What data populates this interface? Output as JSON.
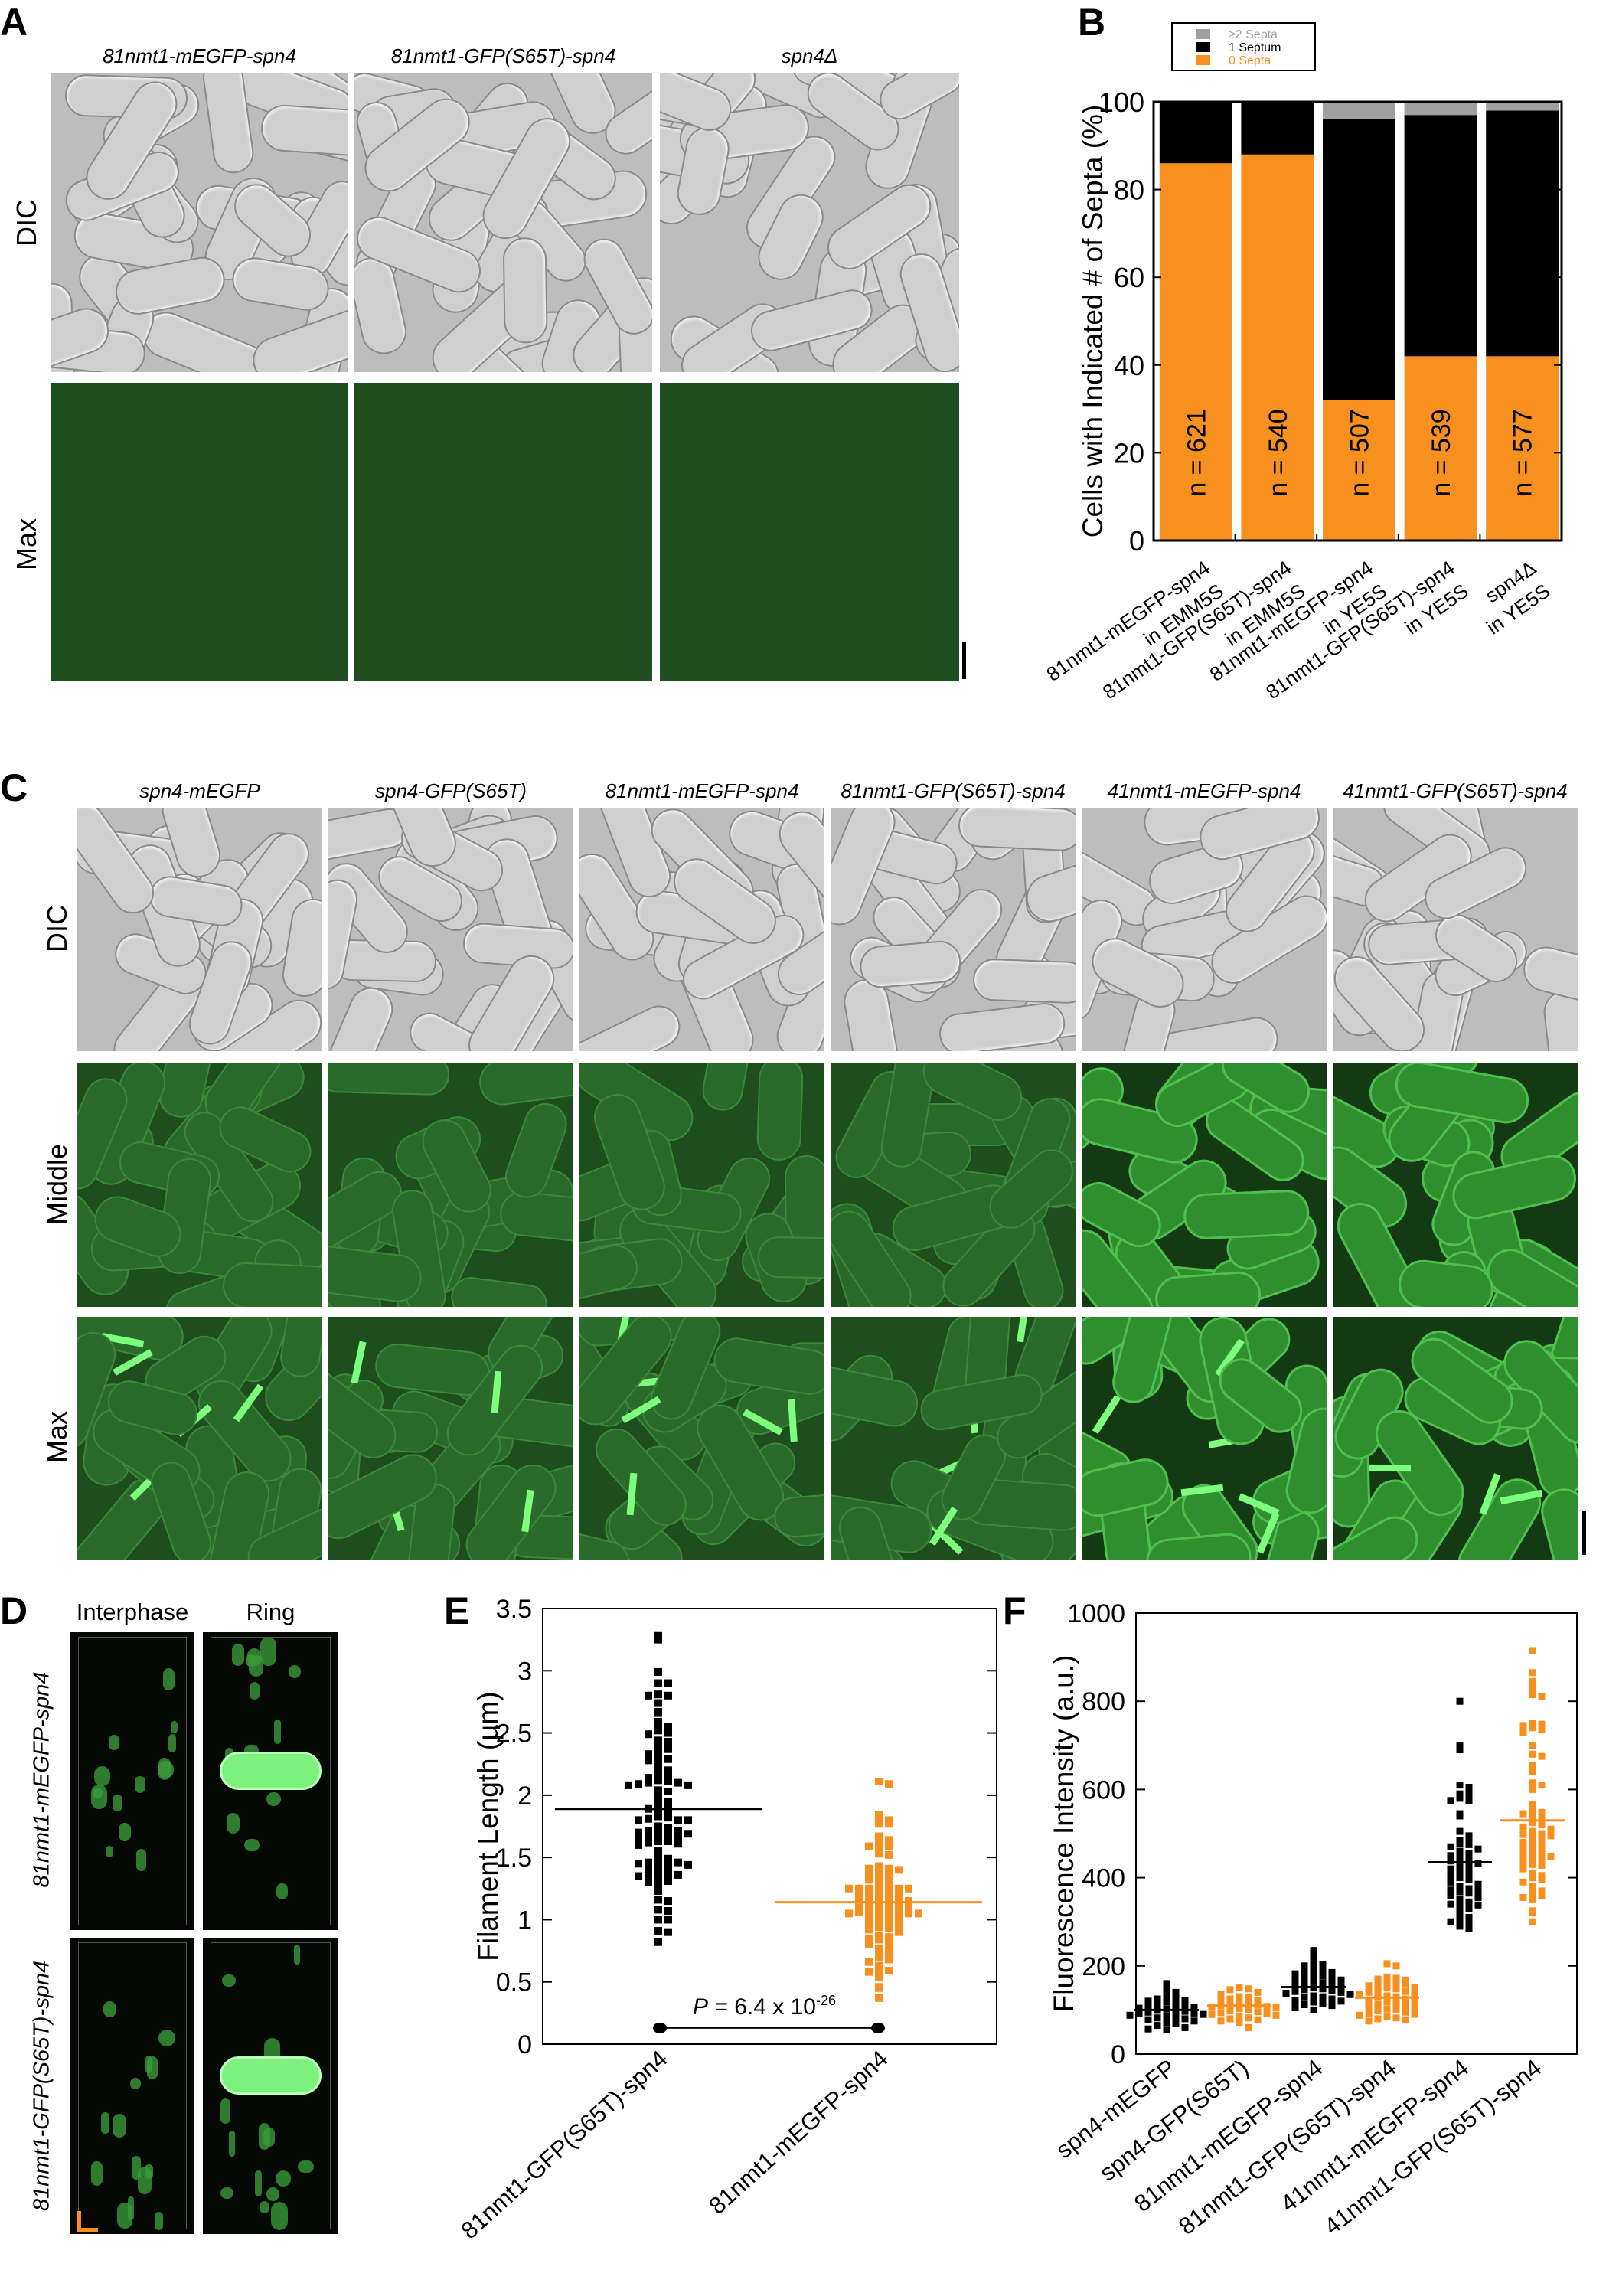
{
  "panel_a": {
    "label": "A",
    "columns": [
      "81nmt1-mEGFP-spn4",
      "81nmt1-GFP(S65T)-spn4",
      "spn4Δ"
    ],
    "rows": [
      "DIC",
      "Max"
    ]
  },
  "panel_c": {
    "label": "C",
    "columns": [
      "spn4-mEGFP",
      "spn4-GFP(S65T)",
      "81nmt1-mEGFP-spn4",
      "81nmt1-GFP(S65T)-spn4",
      "41nmt1-mEGFP-spn4",
      "41nmt1-GFP(S65T)-spn4"
    ],
    "rows": [
      "DIC",
      "Middle",
      "Max"
    ]
  },
  "panel_d": {
    "label": "D",
    "columns": [
      "Interphase",
      "Ring"
    ],
    "rows": [
      "81nmt1-mEGFP-spn4",
      "81nmt1-GFP(S65T)-spn4"
    ]
  },
  "colors": {
    "orange": "#f7901e",
    "black": "#000000",
    "gray": "#a0a0a0",
    "green": "#3ccc3c"
  },
  "chart_data": [
    {
      "panel": "B",
      "type": "bar",
      "stacked": true,
      "ylabel": "Cells with Indicated # of Septa (%)",
      "ylim": [
        0,
        100
      ],
      "yticks": [
        0,
        20,
        40,
        60,
        80,
        100
      ],
      "categories": [
        "81nmt1-mEGFP-spn4\nin EMM5S",
        "81nmt1-GFP(S65T)-spn4\nin EMM5S",
        "81nmt1-mEGFP-spn4\nin YE5S",
        "81nmt1-GFP(S65T)-spn4\nin YE5S",
        "spn4Δ\nin YE5S"
      ],
      "series": [
        {
          "name": "0 Septa",
          "color": "#f7901e",
          "values": [
            86,
            88,
            32,
            42,
            42
          ]
        },
        {
          "name": "1 Septum",
          "color": "#000000",
          "values": [
            14,
            12,
            64,
            55,
            56
          ]
        },
        {
          "name": "≥2 Septa",
          "color": "#a0a0a0",
          "values": [
            0,
            0,
            4,
            3,
            2
          ]
        }
      ],
      "legend_order": [
        "≥2 Septa",
        "1 Septum",
        "0 Septa"
      ],
      "legend": "top",
      "bar_labels": [
        "n = 621",
        "n = 540",
        "n = 507",
        "n = 539",
        "n = 577"
      ]
    },
    {
      "panel": "E",
      "type": "scatter",
      "ylabel": "Filament Length (µm)",
      "ylim": [
        0,
        3.5
      ],
      "yticks": [
        "0",
        "0.5",
        "1",
        "1.5",
        "2",
        "2.5",
        "3",
        "3.5"
      ],
      "categories": [
        "81nmt1-GFP(S65T)-spn4",
        "81nmt1-mEGFP-spn4"
      ],
      "series": [
        {
          "color": "#000000",
          "mean": 1.89,
          "values": [
            3.28,
            3.25,
            2.99,
            2.9,
            2.9,
            2.81,
            2.8,
            2.8,
            2.74,
            2.67,
            2.66,
            2.59,
            2.56,
            2.55,
            2.52,
            2.5,
            2.49,
            2.44,
            2.43,
            2.4,
            2.4,
            2.37,
            2.37,
            2.33,
            2.31,
            2.29,
            2.28,
            2.26,
            2.22,
            2.2,
            2.16,
            2.15,
            2.14,
            2.12,
            2.11,
            2.1,
            2.1,
            2.09,
            2.08,
            2.08,
            2.04,
            2.03,
            1.99,
            1.97,
            1.95,
            1.93,
            1.9,
            1.89,
            1.88,
            1.85,
            1.83,
            1.82,
            1.81,
            1.8,
            1.8,
            1.8,
            1.75,
            1.74,
            1.73,
            1.72,
            1.71,
            1.71,
            1.7,
            1.69,
            1.68,
            1.66,
            1.65,
            1.65,
            1.64,
            1.63,
            1.63,
            1.62,
            1.61,
            1.6,
            1.55,
            1.53,
            1.49,
            1.48,
            1.47,
            1.46,
            1.46,
            1.45,
            1.44,
            1.43,
            1.42,
            1.4,
            1.38,
            1.37,
            1.36,
            1.36,
            1.35,
            1.33,
            1.31,
            1.3,
            1.27,
            1.23,
            1.16,
            1.15,
            1.08,
            1.07,
            1.0,
            1.0,
            0.91,
            0.9,
            0.82
          ]
        },
        {
          "color": "#f7901e",
          "mean": 1.14,
          "values": [
            2.11,
            2.09,
            1.84,
            1.82,
            1.8,
            1.77,
            1.77,
            1.67,
            1.64,
            1.62,
            1.59,
            1.59,
            1.57,
            1.53,
            1.52,
            1.43,
            1.41,
            1.41,
            1.4,
            1.38,
            1.37,
            1.37,
            1.34,
            1.33,
            1.32,
            1.28,
            1.27,
            1.25,
            1.25,
            1.25,
            1.25,
            1.25,
            1.24,
            1.22,
            1.22,
            1.21,
            1.2,
            1.19,
            1.18,
            1.18,
            1.17,
            1.17,
            1.15,
            1.14,
            1.13,
            1.12,
            1.12,
            1.1,
            1.1,
            1.08,
            1.08,
            1.07,
            1.06,
            1.06,
            1.05,
            1.05,
            1.05,
            1.04,
            1.04,
            1.02,
            1.01,
            0.99,
            0.98,
            0.97,
            0.95,
            0.94,
            0.93,
            0.92,
            0.9,
            0.87,
            0.86,
            0.85,
            0.84,
            0.82,
            0.8,
            0.77,
            0.76,
            0.75,
            0.72,
            0.7,
            0.68,
            0.66,
            0.63,
            0.6,
            0.59,
            0.58,
            0.54,
            0.46,
            0.45,
            0.37
          ]
        }
      ],
      "annotation": {
        "p_prefix": "P",
        "p_text": " = 6.4 x 10",
        "p_exponent": "-26"
      }
    },
    {
      "panel": "F",
      "type": "scatter",
      "ylabel": "Fluorescence Intensity (a.u.)",
      "ylim": [
        0,
        1000
      ],
      "yticks": [
        "0",
        "200",
        "400",
        "600",
        "800",
        "1000"
      ],
      "categories": [
        "spn4-mEGFP",
        "spn4-GFP(S65T)",
        "81nmt1-mEGFP-spn4",
        "81nmt1-GFP(S65T)-spn4",
        "41nmt1-mEGFP-spn4",
        "41nmt1-GFP(S65T)-spn4"
      ],
      "series": [
        {
          "color": "#000000",
          "mean": 100,
          "values": [
            160,
            145,
            140,
            130,
            125,
            125,
            122,
            120,
            118,
            115,
            112,
            110,
            108,
            105,
            104,
            102,
            100,
            99,
            97,
            95,
            93,
            92,
            90,
            88,
            86,
            85,
            82,
            80,
            78,
            75,
            72,
            70,
            65,
            60,
            57,
            56
          ]
        },
        {
          "color": "#f7901e",
          "mean": 110,
          "values": [
            150,
            148,
            146,
            140,
            135,
            130,
            128,
            125,
            122,
            120,
            118,
            115,
            113,
            112,
            110,
            108,
            106,
            105,
            103,
            100,
            98,
            96,
            94,
            92,
            90,
            88,
            85,
            82,
            80,
            78,
            75,
            72,
            60
          ]
        },
        {
          "color": "#000000",
          "mean": 152,
          "values": [
            235,
            220,
            205,
            203,
            200,
            195,
            190,
            188,
            185,
            182,
            180,
            178,
            175,
            172,
            170,
            168,
            165,
            162,
            160,
            158,
            155,
            153,
            150,
            148,
            146,
            144,
            142,
            140,
            138,
            135,
            132,
            130,
            128,
            125,
            122,
            120,
            118,
            115,
            112,
            110,
            105,
            100
          ]
        },
        {
          "color": "#f7901e",
          "mean": 128,
          "values": [
            205,
            200,
            175,
            172,
            170,
            168,
            165,
            162,
            160,
            158,
            155,
            152,
            150,
            148,
            145,
            142,
            140,
            138,
            135,
            132,
            130,
            128,
            125,
            122,
            120,
            118,
            115,
            112,
            110,
            108,
            105,
            102,
            100,
            98,
            95,
            92,
            90,
            88,
            85,
            82,
            80,
            78,
            75
          ]
        },
        {
          "color": "#000000",
          "mean": 435,
          "values": [
            800,
            700,
            690,
            610,
            605,
            590,
            590,
            580,
            575,
            575,
            545,
            540,
            505,
            495,
            485,
            480,
            478,
            475,
            470,
            465,
            460,
            455,
            450,
            445,
            440,
            438,
            432,
            430,
            425,
            420,
            415,
            410,
            405,
            400,
            395,
            390,
            385,
            380,
            375,
            372,
            370,
            368,
            365,
            360,
            355,
            350,
            345,
            340,
            338,
            335,
            330,
            320,
            310,
            305,
            300,
            300,
            290,
            285
          ]
        },
        {
          "color": "#f7901e",
          "mean": 530,
          "values": [
            915,
            865,
            845,
            830,
            815,
            810,
            750,
            748,
            745,
            740,
            735,
            730,
            700,
            680,
            675,
            655,
            640,
            615,
            610,
            600,
            565,
            550,
            548,
            545,
            540,
            535,
            525,
            520,
            515,
            510,
            505,
            500,
            498,
            495,
            490,
            485,
            480,
            475,
            470,
            465,
            460,
            455,
            450,
            448,
            445,
            440,
            435,
            430,
            428,
            420,
            410,
            405,
            400,
            395,
            390,
            380,
            370,
            365,
            360,
            355,
            350,
            325,
            320,
            300
          ]
        }
      ]
    }
  ]
}
